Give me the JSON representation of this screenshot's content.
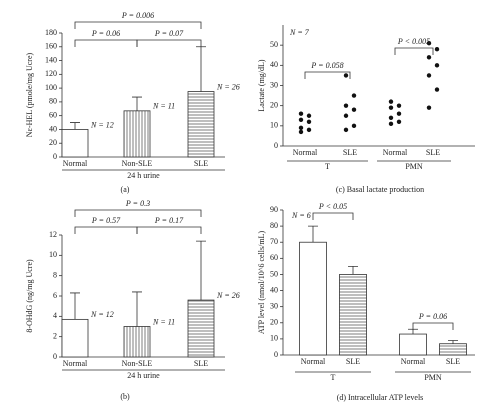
{
  "chart_data": [
    {
      "type": "bar",
      "ylabel": "Nε-HEL (pmole/mg Ucre)",
      "categories": [
        "Normal",
        "Non-SLE",
        "SLE"
      ],
      "values": [
        40,
        67,
        95
      ],
      "errors": [
        10,
        20,
        65
      ],
      "n_labels": [
        "N = 12",
        "N = 11",
        "N = 26"
      ],
      "annotations": [
        "P = 0.006",
        "P = 0.06",
        "P = 0.07"
      ],
      "xlabel": "24 h urine",
      "caption": "(a)",
      "ylim": [
        0,
        180
      ],
      "yticks": [
        0,
        20,
        40,
        60,
        80,
        100,
        120,
        140,
        160,
        180
      ]
    },
    {
      "type": "strip",
      "ylabel": "Lactate (mg/dL)",
      "categories": [
        "Normal",
        "SLE",
        "Normal",
        "SLE"
      ],
      "groups": [
        "T",
        "PMN"
      ],
      "values": [
        [
          16,
          15,
          13,
          12,
          9,
          8,
          7
        ],
        [
          35,
          25,
          20,
          18,
          15,
          10,
          8
        ],
        [
          22,
          20,
          19,
          16,
          14,
          12,
          11
        ],
        [
          51,
          48,
          44,
          40,
          35,
          28,
          19
        ]
      ],
      "n_label": "N = 7",
      "annotations": [
        "P = 0.058",
        "P < 0.005"
      ],
      "caption": "(c) Basal lactate production",
      "ylim": [
        0,
        60
      ],
      "yticks": [
        0,
        10,
        20,
        30,
        40,
        50
      ]
    },
    {
      "type": "bar",
      "ylabel": "8-OHdG (ng/mg Ucre)",
      "categories": [
        "Normal",
        "Non-SLE",
        "SLE"
      ],
      "values": [
        3.7,
        3.0,
        5.6
      ],
      "errors": [
        2.6,
        3.4,
        5.8
      ],
      "n_labels": [
        "N = 12",
        "N = 11",
        "N = 26"
      ],
      "annotations": [
        "P = 0.3",
        "P = 0.57",
        "P = 0.17"
      ],
      "xlabel": "24 h urine",
      "caption": "(b)",
      "ylim": [
        0,
        12
      ],
      "yticks": [
        0,
        2,
        4,
        6,
        8,
        10,
        12
      ]
    },
    {
      "type": "bar",
      "ylabel": "ATP level (nmol/10^6 cells/mL)",
      "categories": [
        "Normal",
        "SLE",
        "Normal",
        "SLE"
      ],
      "groups": [
        "T",
        "PMN"
      ],
      "values": [
        70,
        50,
        13,
        7
      ],
      "errors": [
        10,
        5,
        3,
        2
      ],
      "n_label": "N = 6",
      "annotations": [
        "P < 0.05",
        "P = 0.06"
      ],
      "caption": "(d) Intracellular ATP levels",
      "ylim": [
        0,
        90
      ],
      "yticks": [
        0,
        10,
        20,
        30,
        40,
        50,
        60,
        70,
        80,
        90
      ]
    }
  ]
}
